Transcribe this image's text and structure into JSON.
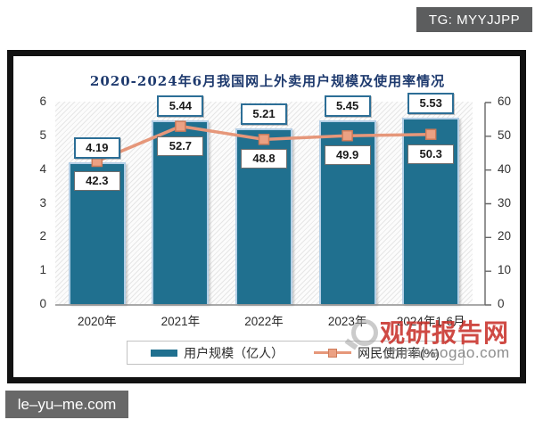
{
  "badges": {
    "top_right": "TG: MYYJJPP",
    "bottom_left": "le–yu–me.com"
  },
  "chart_data": {
    "type": "bar",
    "title": "2020-2024年6月我国网上外卖用户规模及使用率情况",
    "categories": [
      "2020年",
      "2021年",
      "2022年",
      "2023年",
      "2024年1-6月"
    ],
    "series": [
      {
        "name": "用户规模（亿人）",
        "type": "bar",
        "axis": "left",
        "values": [
          4.19,
          5.44,
          5.21,
          5.45,
          5.53
        ],
        "color": "#20708f"
      },
      {
        "name": "网民使用率(%)",
        "type": "line",
        "axis": "right",
        "values": [
          42.3,
          52.7,
          48.8,
          49.9,
          50.3
        ],
        "color": "#e6977a"
      }
    ],
    "left_axis": {
      "min": 0,
      "max": 6,
      "ticks": [
        "6",
        "5",
        "4",
        "3",
        "2",
        "1",
        "0"
      ]
    },
    "right_axis": {
      "min": 0,
      "max": 60,
      "ticks": [
        "60",
        "50",
        "40",
        "30",
        "20",
        "10",
        "0"
      ]
    },
    "grid": false,
    "legend_position": "bottom",
    "colors": {
      "bar_fill": "#20708f",
      "bar_outline": "#b4cfe6",
      "line": "#e6977a",
      "marker_fill": "#eba183",
      "marker_border": "#cf7b59",
      "title": "#1e3a6e"
    }
  },
  "watermark": {
    "name": "观研报告网",
    "domain": "chinabaogao.com"
  }
}
